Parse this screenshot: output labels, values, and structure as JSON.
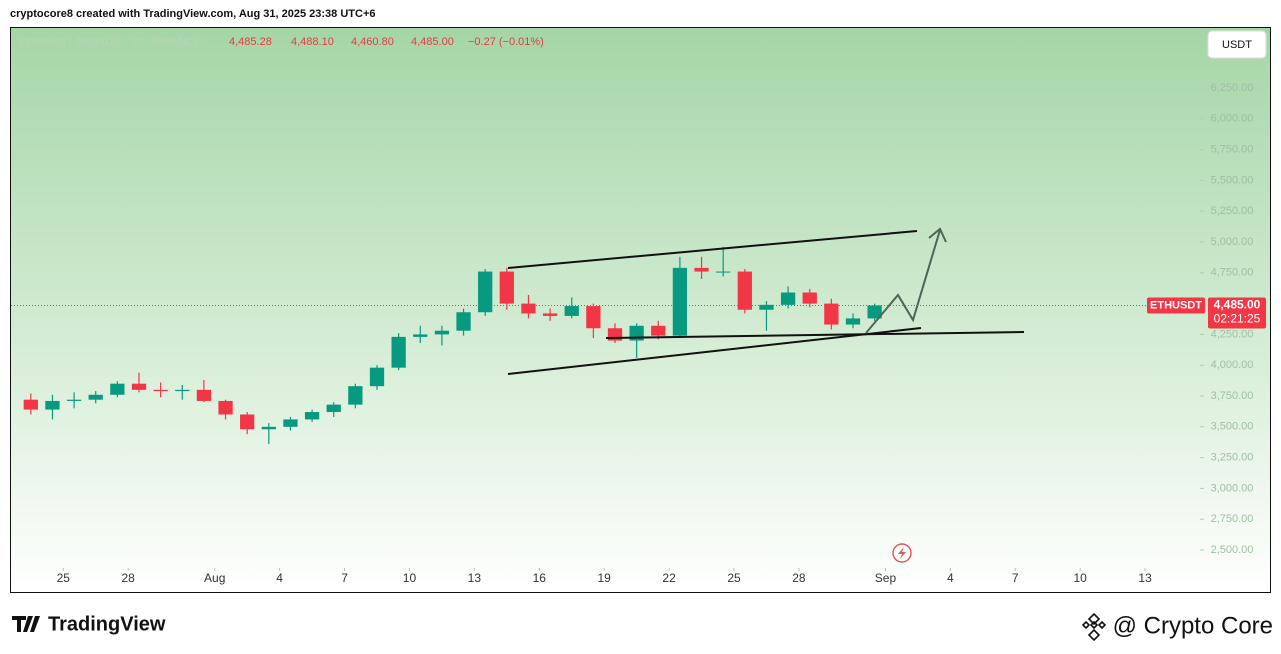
{
  "header": "cryptocore8 created with TradingView.com, Aug 31, 2025 23:38 UTC+6",
  "footer": {
    "brand": "TradingView",
    "author": "@ Crypto Core"
  },
  "chart_data": {
    "type": "candlestick",
    "title": "Ethereum / TetherUS · 4h · BINANCE",
    "ohlc_text": [
      "4,485.28",
      "4,488.10",
      "4,460.80",
      "4,485.00",
      "−0.27 (−0.01%)"
    ],
    "currency": "USDT",
    "symbol": "ETHUSDT",
    "last_price": {
      "value": 4485,
      "label": "4,485.00"
    },
    "countdown": "02:21:25",
    "up_color": "#089981",
    "down_color": "#f23645",
    "x": [
      "2025-07-23",
      "2025-07-24",
      "2025-07-25",
      "2025-07-26",
      "2025-07-27",
      "2025-07-28",
      "2025-07-29",
      "2025-07-30",
      "2025-07-31",
      "2025-08-01",
      "2025-08-02",
      "2025-08-03",
      "2025-08-04",
      "2025-08-05",
      "2025-08-06",
      "2025-08-07",
      "2025-08-08",
      "2025-08-09",
      "2025-08-10",
      "2025-08-11",
      "2025-08-12",
      "2025-08-13",
      "2025-08-14",
      "2025-08-15",
      "2025-08-16",
      "2025-08-17",
      "2025-08-18",
      "2025-08-19",
      "2025-08-20",
      "2025-08-21",
      "2025-08-22",
      "2025-08-23",
      "2025-08-24",
      "2025-08-25",
      "2025-08-26",
      "2025-08-27",
      "2025-08-28",
      "2025-08-29",
      "2025-08-30",
      "2025-08-31"
    ],
    "open": [
      3720,
      3640,
      3710,
      3720,
      3760,
      3850,
      3800,
      3790,
      3800,
      3710,
      3600,
      3480,
      3500,
      3560,
      3620,
      3680,
      3830,
      3980,
      4230,
      4250,
      4280,
      4430,
      4760,
      4500,
      4420,
      4400,
      4480,
      4300,
      4200,
      4320,
      4240,
      4790,
      4760,
      4760,
      4450,
      4490,
      4590,
      4500,
      4330,
      4380
    ],
    "high": [
      3770,
      3760,
      3780,
      3790,
      3870,
      3940,
      3860,
      3840,
      3880,
      3720,
      3620,
      3530,
      3580,
      3640,
      3700,
      3850,
      4000,
      4260,
      4320,
      4320,
      4460,
      4780,
      4790,
      4570,
      4460,
      4550,
      4500,
      4340,
      4340,
      4360,
      4880,
      4880,
      4960,
      4780,
      4520,
      4640,
      4620,
      4540,
      4420,
      4500
    ],
    "low": [
      3600,
      3560,
      3650,
      3690,
      3740,
      3780,
      3740,
      3720,
      3700,
      3560,
      3440,
      3360,
      3470,
      3540,
      3580,
      3650,
      3800,
      3960,
      4180,
      4160,
      4240,
      4400,
      4450,
      4380,
      4360,
      4380,
      4220,
      4180,
      4060,
      4210,
      4220,
      4700,
      4720,
      4420,
      4280,
      4460,
      4470,
      4290,
      4300,
      4360
    ],
    "close": [
      3640,
      3710,
      3720,
      3760,
      3850,
      3800,
      3790,
      3800,
      3710,
      3600,
      3480,
      3500,
      3560,
      3620,
      3680,
      3830,
      3980,
      4230,
      4250,
      4280,
      4430,
      4760,
      4500,
      4420,
      4400,
      4480,
      4300,
      4200,
      4320,
      4240,
      4790,
      4760,
      4760,
      4450,
      4490,
      4590,
      4500,
      4330,
      4380,
      4485
    ],
    "xlim": [
      "2025-07-23",
      "2025-09-16"
    ],
    "xticks": [
      {
        "value": "2025-07-25",
        "label": "25"
      },
      {
        "value": "2025-07-28",
        "label": "28"
      },
      {
        "value": "2025-08-01",
        "label": "Aug"
      },
      {
        "value": "2025-08-04",
        "label": "4"
      },
      {
        "value": "2025-08-07",
        "label": "7"
      },
      {
        "value": "2025-08-10",
        "label": "10"
      },
      {
        "value": "2025-08-13",
        "label": "13"
      },
      {
        "value": "2025-08-16",
        "label": "16"
      },
      {
        "value": "2025-08-19",
        "label": "19"
      },
      {
        "value": "2025-08-22",
        "label": "22"
      },
      {
        "value": "2025-08-25",
        "label": "25"
      },
      {
        "value": "2025-08-28",
        "label": "28"
      },
      {
        "value": "2025-09-01",
        "label": "Sep"
      },
      {
        "value": "2025-09-04",
        "label": "4"
      },
      {
        "value": "2025-09-07",
        "label": "7"
      },
      {
        "value": "2025-09-10",
        "label": "10"
      },
      {
        "value": "2025-09-13",
        "label": "13"
      }
    ],
    "ylim": [
      2354,
      6737
    ],
    "yticks": [
      {
        "value": 2500,
        "label": "2,500.00"
      },
      {
        "value": 2750,
        "label": "2,750.00"
      },
      {
        "value": 3000,
        "label": "3,000.00"
      },
      {
        "value": 3250,
        "label": "3,250.00"
      },
      {
        "value": 3500,
        "label": "3,500.00"
      },
      {
        "value": 3750,
        "label": "3,750.00"
      },
      {
        "value": 4000,
        "label": "4,000.00"
      },
      {
        "value": 4250,
        "label": "4,250.00"
      },
      {
        "value": 4500,
        "label": "4,500.00"
      },
      {
        "value": 4750,
        "label": "4,750.00"
      },
      {
        "value": 5000,
        "label": "5,000.00"
      },
      {
        "value": 5250,
        "label": "5,250.00"
      },
      {
        "value": 5500,
        "label": "5,500.00"
      },
      {
        "value": 5750,
        "label": "5,750.00"
      },
      {
        "value": 6000,
        "label": "6,000.00"
      },
      {
        "value": 6250,
        "label": "6,250.00"
      }
    ]
  }
}
